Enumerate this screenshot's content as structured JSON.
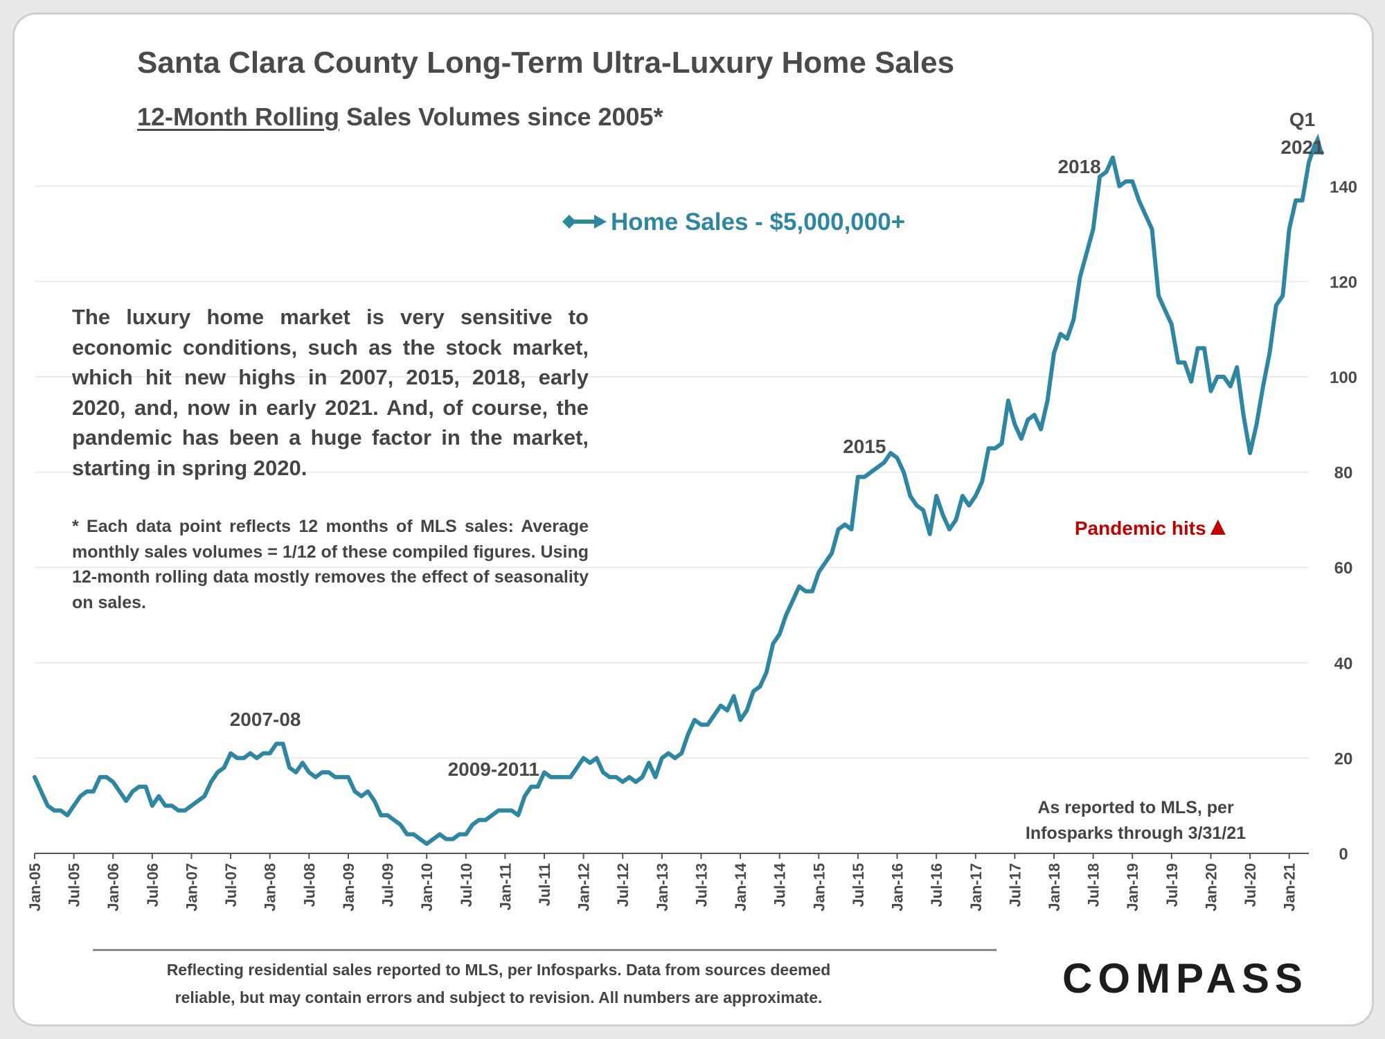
{
  "header": {
    "title": "Santa Clara County Long-Term Ultra-Luxury Home Sales",
    "subtitle_underlined": "12-Month Rolling",
    "subtitle_rest": " Sales Volumes since 2005*"
  },
  "text": {
    "description": "The luxury home market is very sensitive to economic conditions, such as the stock market, which hit new highs in 2007, 2015, 2018, early 2020, and, now in early 2021. And, of course, the pandemic has been a huge factor in the market, starting in spring 2020.",
    "note": "* Each data point reflects 12 months of MLS sales: Average monthly sales volumes = 1/12 of these compiled figures. Using 12-month rolling data mostly removes the effect of seasonality on sales.",
    "source_line1": "As reported to MLS, per",
    "source_line2": "Infosparks through 3/31/21"
  },
  "footer": {
    "line1": "Reflecting residential sales reported to MLS, per Infosparks. Data from sources deemed",
    "line2": "reliable, but may contain errors and subject to revision. All numbers are approximate.",
    "logo": "COMPASS"
  },
  "colors": {
    "line": "#2e86a0",
    "text": "#4a4a4a",
    "pandemic": "#c00000",
    "gridline": "#ececec"
  },
  "chart_data": {
    "type": "line",
    "title": "Santa Clara County Long-Term Ultra-Luxury Home Sales",
    "subtitle": "12-Month Rolling Sales Volumes since 2005*",
    "legend": "top-center",
    "grid": true,
    "ylim": [
      0,
      150
    ],
    "y_ticks": [
      0,
      20,
      40,
      60,
      80,
      100,
      120,
      140
    ],
    "y_axis_side": "right",
    "x_tick_labels": [
      "Jan-05",
      "Jul-05",
      "Jan-06",
      "Jul-06",
      "Jan-07",
      "Jul-07",
      "Jan-08",
      "Jul-08",
      "Jan-09",
      "Jul-09",
      "Jan-10",
      "Jul-10",
      "Jan-11",
      "Jul-11",
      "Jan-12",
      "Jul-12",
      "Jan-13",
      "Jul-13",
      "Jan-14",
      "Jul-14",
      "Jan-15",
      "Jul-15",
      "Jan-16",
      "Jul-16",
      "Jan-17",
      "Jul-17",
      "Jan-18",
      "Jul-18",
      "Jan-19",
      "Jul-19",
      "Jan-20",
      "Jul-20",
      "Jan-21"
    ],
    "x_start": "Jan-05",
    "x_end": "Mar-21",
    "series": [
      {
        "name": "Home Sales - $5,000,000+",
        "values": [
          16,
          13,
          10,
          9,
          9,
          8,
          10,
          12,
          13,
          13,
          16,
          16,
          15,
          13,
          11,
          13,
          14,
          14,
          10,
          12,
          10,
          10,
          9,
          9,
          10,
          11,
          12,
          15,
          17,
          18,
          21,
          20,
          20,
          21,
          20,
          21,
          21,
          23,
          23,
          18,
          17,
          19,
          17,
          16,
          17,
          17,
          16,
          16,
          16,
          13,
          12,
          13,
          11,
          8,
          8,
          7,
          6,
          4,
          4,
          3,
          2,
          3,
          4,
          3,
          3,
          4,
          4,
          6,
          7,
          7,
          8,
          9,
          9,
          9,
          8,
          12,
          14,
          14,
          17,
          16,
          16,
          16,
          16,
          18,
          20,
          19,
          20,
          17,
          16,
          16,
          15,
          16,
          15,
          16,
          19,
          16,
          20,
          21,
          20,
          21,
          25,
          28,
          27,
          27,
          29,
          31,
          30,
          33,
          28,
          30,
          34,
          35,
          38,
          44,
          46,
          50,
          53,
          56,
          55,
          55,
          59,
          61,
          63,
          68,
          69,
          68,
          79,
          79,
          80,
          81,
          82,
          84,
          83,
          80,
          75,
          73,
          72,
          67,
          75,
          71,
          68,
          70,
          75,
          73,
          75,
          78,
          85,
          85,
          86,
          95,
          90,
          87,
          91,
          92,
          89,
          95,
          105,
          109,
          108,
          112,
          121,
          126,
          131,
          142,
          143,
          146,
          140,
          141,
          141,
          137,
          134,
          131,
          117,
          114,
          111,
          103,
          103,
          99,
          106,
          106,
          97,
          100,
          100,
          98,
          102,
          92,
          84,
          90,
          98,
          105,
          115,
          117,
          131,
          137,
          137,
          145,
          149,
          147
        ]
      }
    ],
    "annotations": [
      {
        "text": "2007-08",
        "x": "Feb-08"
      },
      {
        "text": "2009-2011",
        "x": "Jul-10"
      },
      {
        "text": "2015",
        "x": "Aug-15"
      },
      {
        "text": "2018",
        "x": "Jul-18"
      },
      {
        "text": "Q1",
        "x": "Mar-21"
      },
      {
        "text": "2021",
        "x": "Mar-21"
      },
      {
        "text": "Pandemic hits",
        "x": "Apr-20"
      }
    ]
  }
}
